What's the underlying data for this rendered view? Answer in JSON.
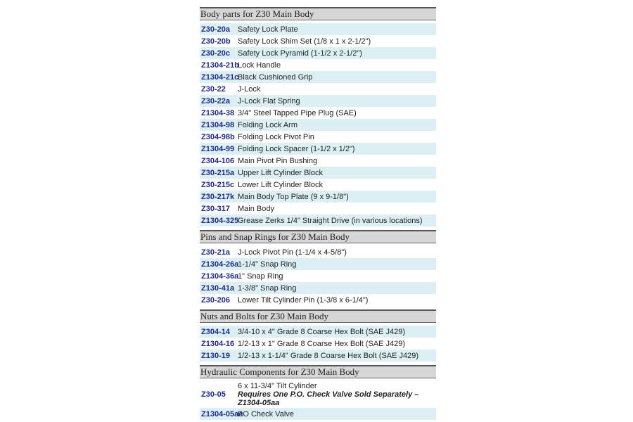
{
  "sections": [
    {
      "title": "Body parts for Z30 Main Body",
      "rows": [
        {
          "part": "Z30-20a",
          "desc": "Safety Lock Plate",
          "highlight": true
        },
        {
          "part": "Z30-20b",
          "desc": "Safety Lock Shim Set (1/8 x 1 x 2-1/2\")",
          "highlight": false
        },
        {
          "part": "Z30-20c",
          "desc": "Safety Lock Pyramid (1-1/2 x 2-1/2\")",
          "highlight": true
        },
        {
          "part": "Z1304-21b",
          "desc": "Lock Handle",
          "highlight": false
        },
        {
          "part": "Z1304-21c",
          "desc": "Black Cushioned Grip",
          "highlight": true
        },
        {
          "part": "Z30-22",
          "desc": "J-Lock",
          "highlight": false
        },
        {
          "part": "Z30-22a",
          "desc": "J-Lock Flat Spring",
          "highlight": true
        },
        {
          "part": "Z1304-38",
          "desc": "3/4\" Steel Tapped Pipe Plug (SAE)",
          "highlight": false
        },
        {
          "part": "Z1304-98",
          "desc": "Folding Lock Arm",
          "highlight": true
        },
        {
          "part": "Z304-98b",
          "desc": "Folding Lock Pivot Pin",
          "highlight": false
        },
        {
          "part": "Z1304-99",
          "desc": "Folding Lock Spacer (1-1/2 x 1/2\")",
          "highlight": true
        },
        {
          "part": "Z304-106",
          "desc": "Main Pivot Pin Bushing",
          "highlight": false
        },
        {
          "part": "Z30-215a",
          "desc": "Upper Lift Cylinder Block",
          "highlight": true
        },
        {
          "part": "Z30-215c",
          "desc": "Lower Lift Cylinder Block",
          "highlight": false
        },
        {
          "part": "Z30-217k",
          "desc": "Main Body Top Plate (9 x 9-1/8\")",
          "highlight": true
        },
        {
          "part": "Z30-317",
          "desc": "Main Body",
          "highlight": false
        },
        {
          "part": "Z1304-325",
          "desc": "Grease Zerks 1/4\" Straight Drive (in various locations)",
          "highlight": true
        }
      ]
    },
    {
      "title": "Pins and Snap Rings for Z30 Main Body",
      "rows": [
        {
          "part": "Z30-21a",
          "desc": "J-Lock Pivot Pin (1-1/4 x 4-5/8\")",
          "highlight": false
        },
        {
          "part": "Z1304-26a",
          "desc": "1-1/4\" Snap Ring",
          "highlight": true
        },
        {
          "part": "Z1304-36a",
          "desc": "1\" Snap Ring",
          "highlight": false
        },
        {
          "part": "Z130-41a",
          "desc": "1-3/8\" Snap Ring",
          "highlight": true
        },
        {
          "part": "Z30-206",
          "desc": "Lower Tilt Cylinder Pin (1-3/8 x 6-1/4\")",
          "highlight": false
        }
      ]
    },
    {
      "title": "Nuts and Bolts for Z30 Main Body",
      "rows": [
        {
          "part": "Z304-14",
          "desc": "3/4-10 x 4\" Grade 8 Coarse Hex Bolt (SAE J429)",
          "highlight": true
        },
        {
          "part": "Z1304-16",
          "desc": "1/2-13 x 1\" Grade 8 Coarse Hex Bolt (SAE J429)",
          "highlight": false
        },
        {
          "part": "Z130-19",
          "desc": "1/2-13 x 1-1/4\" Grade 8 Coarse Hex Bolt (SAE J429)",
          "highlight": true
        }
      ]
    },
    {
      "title": "Hydraulic Components for Z30 Main Body",
      "rows": [
        {
          "part": "Z30-05",
          "desc": "6 x 11-3/4\" Tilt Cylinder",
          "note": "Requires One P.O. Check Valve Sold Separately – Z1304-05aa",
          "highlight": false
        },
        {
          "part": "Z1304-05aa",
          "desc": "PO Check Valve",
          "highlight": true
        }
      ]
    }
  ]
}
